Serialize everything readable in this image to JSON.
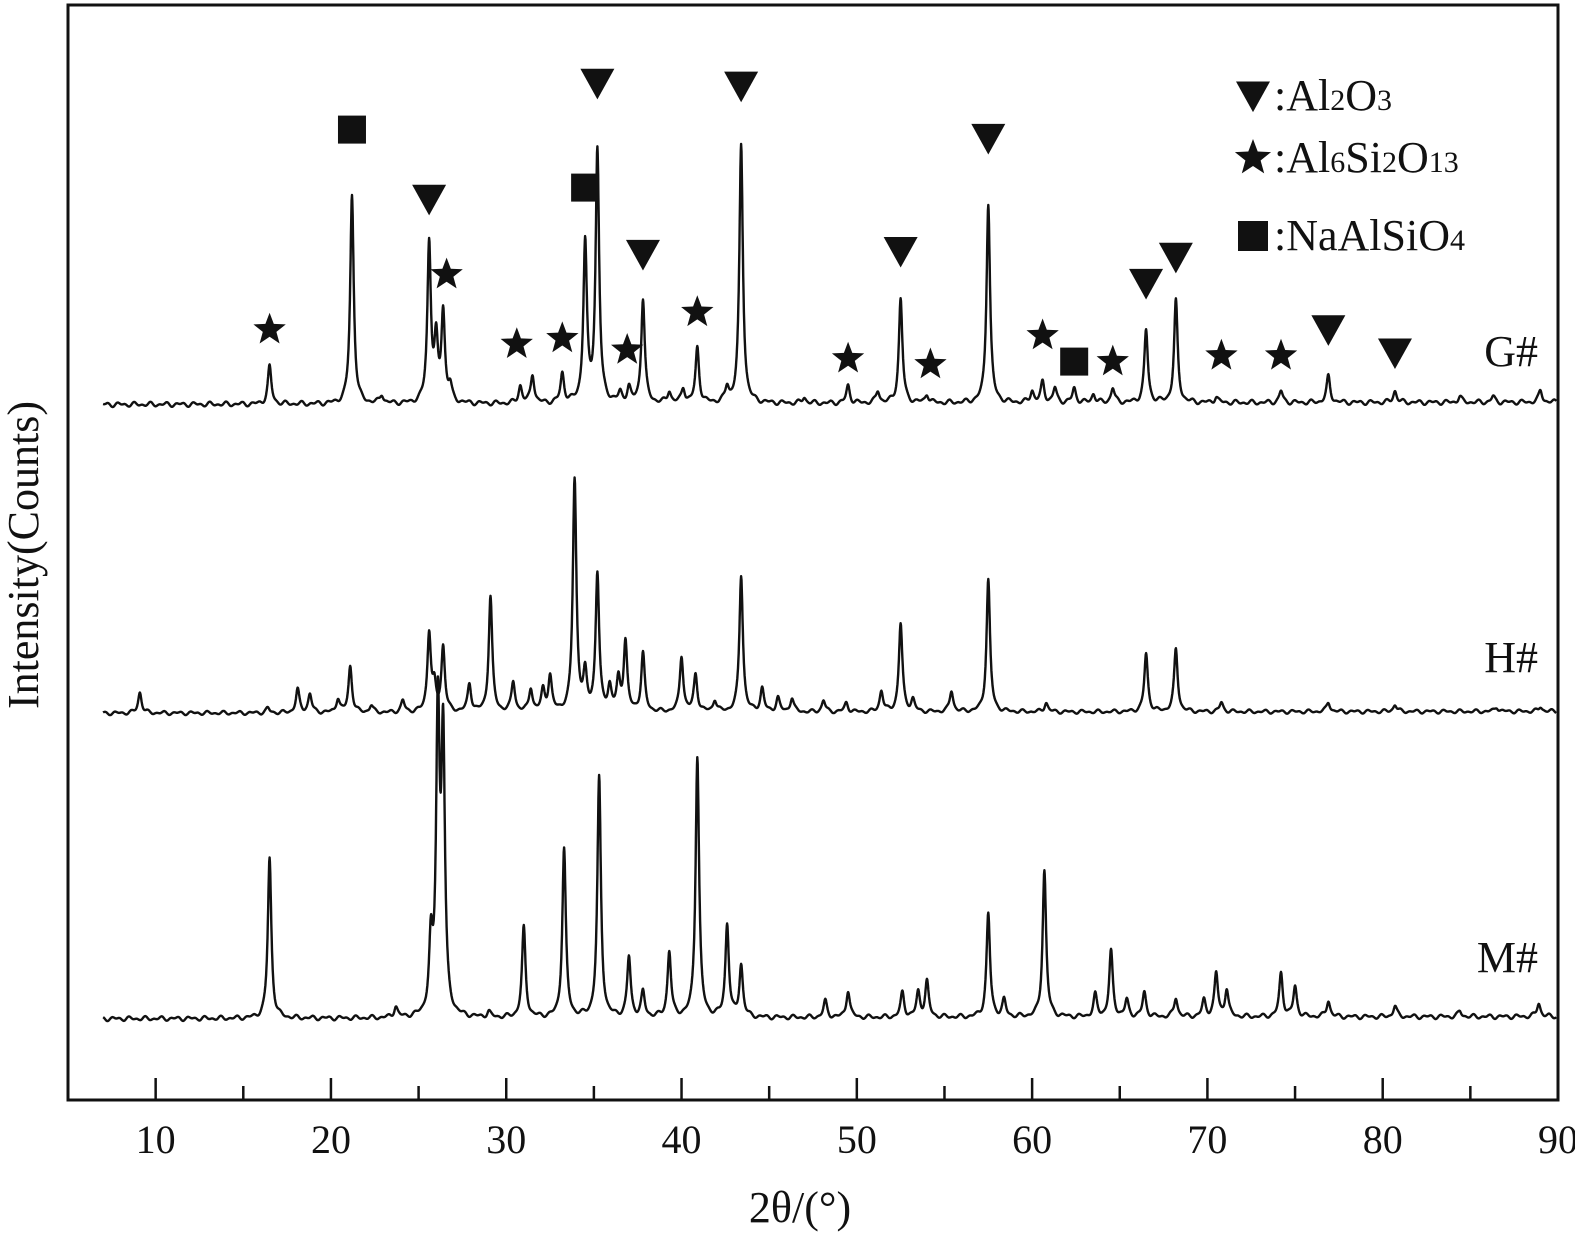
{
  "chart_data": {
    "type": "line",
    "title": "",
    "xlabel": "2θ/(°)",
    "ylabel": "Intensity(Counts)",
    "xlim": [
      5,
      90
    ],
    "x_ticks": [
      "10",
      "20",
      "30",
      "40",
      "50",
      "60",
      "70",
      "80",
      "90"
    ],
    "y_ticks_visible": false,
    "grid": false,
    "legend_position": "top-right",
    "legend": [
      {
        "marker": "triangle-down",
        "label_parts": [
          [
            ":Al",
            ""
          ],
          [
            "2",
            "sub"
          ],
          [
            "O",
            ""
          ],
          [
            "3",
            "sub"
          ]
        ],
        "label": ":Al2O3"
      },
      {
        "marker": "star",
        "label_parts": [
          [
            ":Al",
            ""
          ],
          [
            "6",
            "sub"
          ],
          [
            "Si",
            ""
          ],
          [
            "2",
            "sub"
          ],
          [
            "O",
            ""
          ],
          [
            "13",
            "sub"
          ]
        ],
        "label": ":Al6Si2O13"
      },
      {
        "marker": "square",
        "label_parts": [
          [
            ":NaAlSiO",
            ""
          ],
          [
            "4",
            "sub"
          ]
        ],
        "label": ":NaAlSiO4"
      }
    ],
    "series": [
      {
        "name": "G#",
        "baseline": 0.02,
        "peaks": [
          [
            16.5,
            0.13
          ],
          [
            21.2,
            0.72
          ],
          [
            22.9,
            0.03
          ],
          [
            25.6,
            0.55
          ],
          [
            26.0,
            0.2
          ],
          [
            26.4,
            0.31
          ],
          [
            26.8,
            0.05
          ],
          [
            30.8,
            0.06
          ],
          [
            31.5,
            0.1
          ],
          [
            33.2,
            0.1
          ],
          [
            34.5,
            0.55
          ],
          [
            35.2,
            0.87
          ],
          [
            36.5,
            0.03
          ],
          [
            37.0,
            0.05
          ],
          [
            37.8,
            0.36
          ],
          [
            39.3,
            0.04
          ],
          [
            40.1,
            0.05
          ],
          [
            40.9,
            0.19
          ],
          [
            42.6,
            0.05
          ],
          [
            43.4,
            0.89
          ],
          [
            47.0,
            0.02
          ],
          [
            49.5,
            0.06
          ],
          [
            51.2,
            0.04
          ],
          [
            52.5,
            0.36
          ],
          [
            54.0,
            0.03
          ],
          [
            57.5,
            0.69
          ],
          [
            60.0,
            0.04
          ],
          [
            60.6,
            0.07
          ],
          [
            61.3,
            0.05
          ],
          [
            62.4,
            0.05
          ],
          [
            63.5,
            0.03
          ],
          [
            64.6,
            0.05
          ],
          [
            66.5,
            0.25
          ],
          [
            68.2,
            0.35
          ],
          [
            70.5,
            0.02
          ],
          [
            74.2,
            0.04
          ],
          [
            76.9,
            0.09
          ],
          [
            80.7,
            0.04
          ],
          [
            84.4,
            0.02
          ],
          [
            86.3,
            0.02
          ],
          [
            89.0,
            0.04
          ]
        ]
      },
      {
        "name": "H#",
        "baseline": 0.02,
        "peaks": [
          [
            9.1,
            0.09
          ],
          [
            16.4,
            0.02
          ],
          [
            18.1,
            0.1
          ],
          [
            18.8,
            0.08
          ],
          [
            20.4,
            0.06
          ],
          [
            21.1,
            0.2
          ],
          [
            22.3,
            0.03
          ],
          [
            24.1,
            0.05
          ],
          [
            25.6,
            0.34
          ],
          [
            25.9,
            0.1
          ],
          [
            26.4,
            0.28
          ],
          [
            27.9,
            0.12
          ],
          [
            29.1,
            0.5
          ],
          [
            30.4,
            0.13
          ],
          [
            31.4,
            0.1
          ],
          [
            32.1,
            0.09
          ],
          [
            32.5,
            0.15
          ],
          [
            33.9,
            1.0
          ],
          [
            34.5,
            0.15
          ],
          [
            35.2,
            0.59
          ],
          [
            35.9,
            0.1
          ],
          [
            36.4,
            0.13
          ],
          [
            36.8,
            0.3
          ],
          [
            37.8,
            0.25
          ],
          [
            40.0,
            0.24
          ],
          [
            40.8,
            0.16
          ],
          [
            41.9,
            0.05
          ],
          [
            43.4,
            0.59
          ],
          [
            44.6,
            0.1
          ],
          [
            45.5,
            0.06
          ],
          [
            46.3,
            0.06
          ],
          [
            48.1,
            0.05
          ],
          [
            49.4,
            0.04
          ],
          [
            51.4,
            0.09
          ],
          [
            52.5,
            0.38
          ],
          [
            53.2,
            0.05
          ],
          [
            55.4,
            0.09
          ],
          [
            57.5,
            0.57
          ],
          [
            60.8,
            0.04
          ],
          [
            66.5,
            0.25
          ],
          [
            68.2,
            0.27
          ],
          [
            70.8,
            0.04
          ],
          [
            76.9,
            0.04
          ],
          [
            80.7,
            0.03
          ],
          [
            86.5,
            0.02
          ],
          [
            89.0,
            0.02
          ]
        ]
      },
      {
        "name": "M#",
        "baseline": 0.02,
        "peaks": [
          [
            16.5,
            0.59
          ],
          [
            23.7,
            0.04
          ],
          [
            25.7,
            0.25
          ],
          [
            26.1,
            1.1
          ],
          [
            26.4,
            1.0
          ],
          [
            29.0,
            0.02
          ],
          [
            31.0,
            0.33
          ],
          [
            33.3,
            0.62
          ],
          [
            35.3,
            0.88
          ],
          [
            37.0,
            0.22
          ],
          [
            37.8,
            0.09
          ],
          [
            39.3,
            0.24
          ],
          [
            40.9,
            0.96
          ],
          [
            42.6,
            0.34
          ],
          [
            43.4,
            0.19
          ],
          [
            48.2,
            0.06
          ],
          [
            49.5,
            0.1
          ],
          [
            52.6,
            0.09
          ],
          [
            53.5,
            0.09
          ],
          [
            54.0,
            0.13
          ],
          [
            57.5,
            0.38
          ],
          [
            58.4,
            0.06
          ],
          [
            60.7,
            0.54
          ],
          [
            63.6,
            0.08
          ],
          [
            64.5,
            0.24
          ],
          [
            65.4,
            0.06
          ],
          [
            66.4,
            0.09
          ],
          [
            68.2,
            0.07
          ],
          [
            69.8,
            0.06
          ],
          [
            70.5,
            0.16
          ],
          [
            71.1,
            0.1
          ],
          [
            74.2,
            0.16
          ],
          [
            75.0,
            0.11
          ],
          [
            76.9,
            0.06
          ],
          [
            80.7,
            0.04
          ],
          [
            84.4,
            0.02
          ],
          [
            88.9,
            0.05
          ]
        ]
      }
    ],
    "markers": [
      {
        "type": "star",
        "x": 16.5,
        "y": 0.27
      },
      {
        "type": "square",
        "x": 21.2,
        "y": 0.96
      },
      {
        "type": "triangle-down",
        "x": 25.6,
        "y": 0.72
      },
      {
        "type": "star",
        "x": 26.6,
        "y": 0.46
      },
      {
        "type": "star",
        "x": 30.6,
        "y": 0.22
      },
      {
        "type": "star",
        "x": 33.2,
        "y": 0.24
      },
      {
        "type": "square",
        "x": 34.5,
        "y": 0.76
      },
      {
        "type": "triangle-down",
        "x": 35.2,
        "y": 1.12
      },
      {
        "type": "star",
        "x": 36.9,
        "y": 0.2
      },
      {
        "type": "triangle-down",
        "x": 37.8,
        "y": 0.53
      },
      {
        "type": "star",
        "x": 40.9,
        "y": 0.33
      },
      {
        "type": "triangle-down",
        "x": 43.4,
        "y": 1.11
      },
      {
        "type": "star",
        "x": 49.5,
        "y": 0.17
      },
      {
        "type": "triangle-down",
        "x": 52.5,
        "y": 0.54
      },
      {
        "type": "star",
        "x": 54.2,
        "y": 0.15
      },
      {
        "type": "triangle-down",
        "x": 57.5,
        "y": 0.93
      },
      {
        "type": "star",
        "x": 60.6,
        "y": 0.25
      },
      {
        "type": "square",
        "x": 62.4,
        "y": 0.16
      },
      {
        "type": "star",
        "x": 64.6,
        "y": 0.16
      },
      {
        "type": "triangle-down",
        "x": 66.5,
        "y": 0.43
      },
      {
        "type": "triangle-down",
        "x": 68.2,
        "y": 0.52
      },
      {
        "type": "star",
        "x": 70.8,
        "y": 0.18
      },
      {
        "type": "star",
        "x": 74.2,
        "y": 0.18
      },
      {
        "type": "triangle-down",
        "x": 76.9,
        "y": 0.27
      },
      {
        "type": "triangle-down",
        "x": 80.7,
        "y": 0.19
      }
    ],
    "colors": {
      "line": "#111111",
      "axis": "#111111",
      "background": "#ffffff"
    }
  }
}
